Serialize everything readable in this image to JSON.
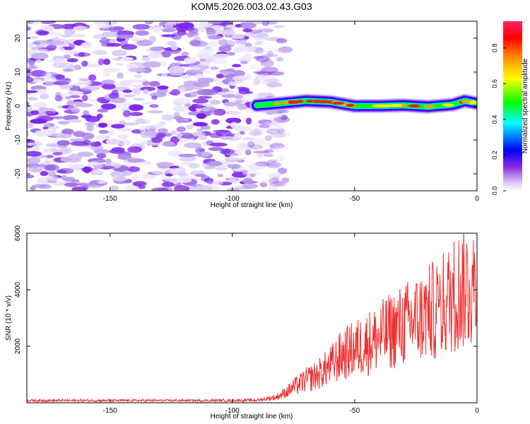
{
  "title": "KOM5.2026.003.02.43.G03",
  "chart_data": [
    {
      "type": "heatmap",
      "name": "spectrogram",
      "xlabel": "Height of straight line (km)",
      "ylabel": "Frequency (Hz)",
      "xlim": [
        -184,
        0
      ],
      "ylim": [
        -25,
        25
      ],
      "xticks": [
        -150,
        -100,
        -50,
        0
      ],
      "xtick_labels": [
        "-150",
        "-100",
        "-50",
        "0"
      ],
      "yticks": [
        20,
        10,
        0,
        -10,
        -20
      ],
      "ytick_labels": [
        "20",
        "10",
        "0",
        "-10",
        "-20"
      ],
      "noise_region_x": [
        -184,
        -84
      ],
      "signal_track": {
        "x": [
          -90,
          -80,
          -70,
          -60,
          -50,
          -40,
          -30,
          -20,
          -10,
          -5,
          0
        ],
        "y": [
          0.2,
          0.8,
          1.5,
          1.2,
          0,
          0,
          0.2,
          -0.2,
          0.4,
          1.5,
          0.8
        ],
        "peak_amplitude": 0.95
      },
      "colorbar": {
        "label": "Normalized spectral amplitude",
        "range": [
          0,
          0.95
        ],
        "ticks": [
          0.0,
          0.2,
          0.4,
          0.6,
          0.8
        ],
        "tick_labels": [
          "0.0",
          "0.2",
          "0.4",
          "0.6",
          "0.8"
        ]
      }
    },
    {
      "type": "line",
      "name": "snr",
      "xlabel": "Height of straight line (km)",
      "ylabel": "SNR (10 * v/v)",
      "xlim": [
        -184,
        0
      ],
      "ylim": [
        0,
        6000
      ],
      "xticks": [
        -150,
        -100,
        -50,
        0
      ],
      "xtick_labels": [
        "-150",
        "-100",
        "-50",
        "0"
      ],
      "yticks": [
        2000,
        4000,
        6000
      ],
      "ytick_labels": [
        "2000",
        "4000",
        "6000"
      ],
      "color": "#ee3333",
      "x": [
        -184,
        -170,
        -150,
        -130,
        -110,
        -90,
        -82,
        -78,
        -75,
        -70,
        -65,
        -60,
        -55,
        -50,
        -45,
        -40,
        -35,
        -30,
        -25,
        -20,
        -15,
        -12,
        -10,
        -8,
        -5,
        -3,
        0
      ],
      "y": [
        80,
        80,
        80,
        80,
        80,
        90,
        200,
        380,
        550,
        800,
        1000,
        1300,
        1700,
        1900,
        2100,
        2300,
        2550,
        2750,
        2950,
        3150,
        3400,
        3600,
        3800,
        3950,
        4100,
        4150,
        4200
      ]
    }
  ]
}
